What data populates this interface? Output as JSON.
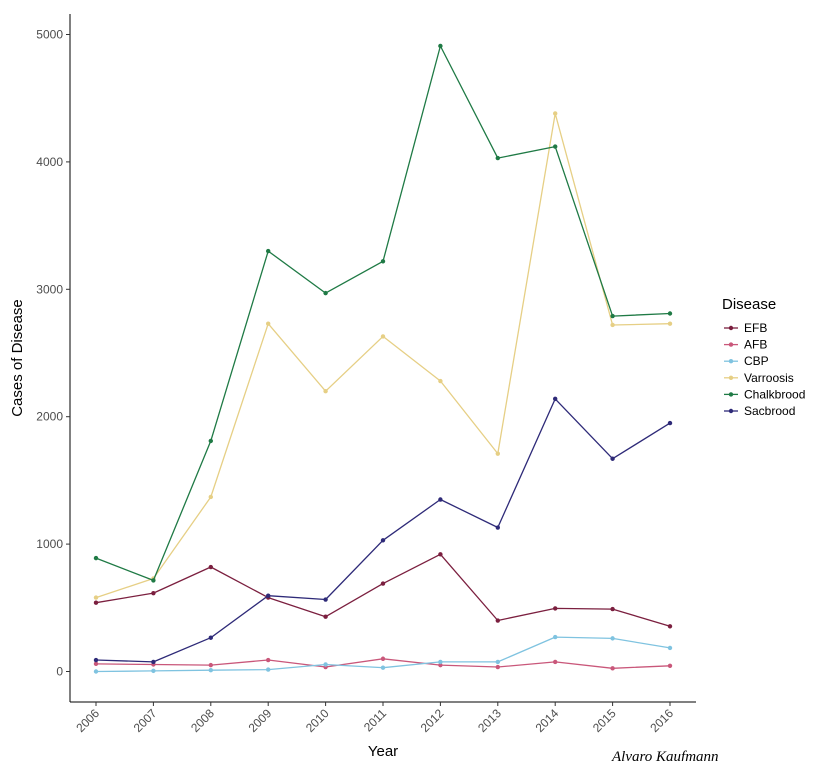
{
  "chart_data": {
    "type": "line",
    "xlabel": "Year",
    "ylabel": "Cases of Disease",
    "x": [
      2006,
      2007,
      2008,
      2009,
      2010,
      2011,
      2012,
      2013,
      2014,
      2015,
      2016
    ],
    "x_tick_labels": [
      "2006",
      "2007",
      "2008",
      "2009",
      "2010",
      "2011",
      "2012",
      "2013",
      "2014",
      "2015",
      "2016"
    ],
    "y_ticks": [
      0,
      1000,
      2000,
      3000,
      4000,
      5000
    ],
    "y_tick_labels": [
      "0",
      "1000",
      "2000",
      "3000",
      "4000",
      "5000"
    ],
    "ylim": [
      -260,
      5150
    ],
    "grid": false,
    "legend": {
      "title": "Disease",
      "position": "right"
    },
    "series": [
      {
        "name": "EFB",
        "color": "#7b1f3f",
        "values": [
          540,
          615,
          820,
          580,
          430,
          690,
          920,
          400,
          495,
          490,
          355
        ]
      },
      {
        "name": "AFB",
        "color": "#c9577a",
        "values": [
          60,
          55,
          50,
          90,
          35,
          100,
          50,
          35,
          75,
          25,
          45
        ]
      },
      {
        "name": "CBP",
        "color": "#7fc3e0",
        "values": [
          0,
          5,
          10,
          15,
          55,
          30,
          75,
          75,
          270,
          260,
          185
        ]
      },
      {
        "name": "Varroosis",
        "color": "#e6cf85",
        "values": [
          580,
          730,
          1370,
          2730,
          2200,
          2630,
          2280,
          1710,
          4380,
          2720,
          2730
        ]
      },
      {
        "name": "Chalkbrood",
        "color": "#1f7a45",
        "values": [
          890,
          715,
          1810,
          3300,
          2970,
          3220,
          4910,
          4030,
          4120,
          2790,
          2810
        ]
      },
      {
        "name": "Sacbrood",
        "color": "#2e2a78",
        "values": [
          90,
          75,
          265,
          595,
          565,
          1030,
          1350,
          1130,
          2140,
          1670,
          1950
        ]
      }
    ],
    "annotation": "Alvaro Kaufmann"
  }
}
